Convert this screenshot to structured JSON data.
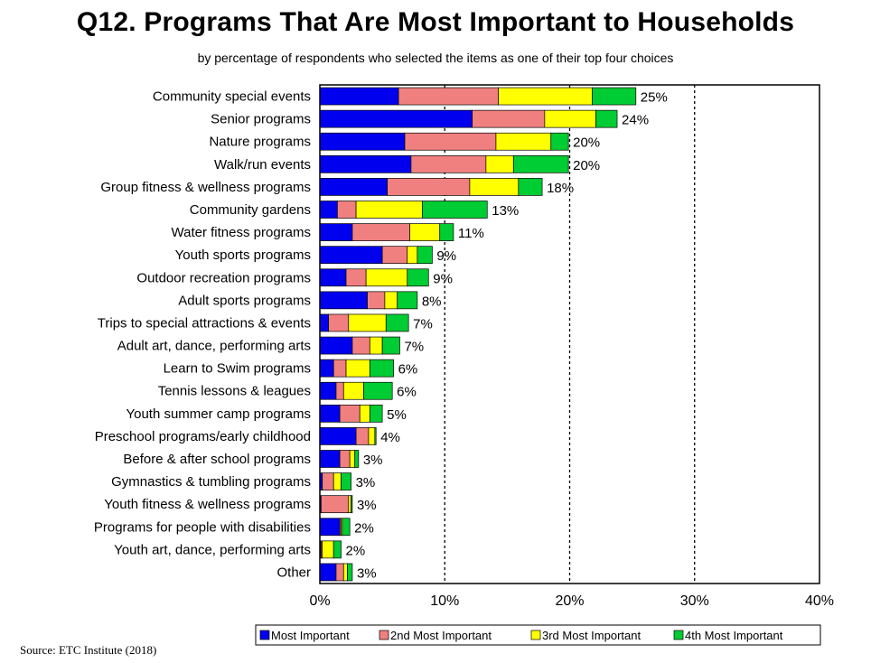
{
  "title": "Q12. Programs That Are Most Important to Households",
  "subtitle": "by percentage of respondents who selected the items as one of their top four choices",
  "source": "Source:  ETC Institute (2018)",
  "colors": {
    "most": "#0000ee",
    "second": "#f08080",
    "third": "#ffff00",
    "fourth": "#00cc33"
  },
  "chart_data": {
    "type": "bar",
    "orientation": "horizontal",
    "stacked": true,
    "x_ticks": [
      "0%",
      "10%",
      "20%",
      "30%",
      "40%"
    ],
    "xlim": [
      0,
      40
    ],
    "grid": "dotted vertical at 10%, 20%, 30%",
    "legend_position": "bottom",
    "series": [
      {
        "name": "Most Important",
        "color": "#0000ee"
      },
      {
        "name": "2nd Most Important",
        "color": "#f08080"
      },
      {
        "name": "3rd Most Important",
        "color": "#ffff00"
      },
      {
        "name": "4th Most Important",
        "color": "#00cc33"
      }
    ],
    "categories": [
      {
        "label": "Community special events",
        "values": [
          6.3,
          8.0,
          7.5,
          3.5
        ],
        "total": "25%"
      },
      {
        "label": "Senior programs",
        "values": [
          12.2,
          5.8,
          4.1,
          1.7
        ],
        "total": "24%"
      },
      {
        "label": "Nature programs",
        "values": [
          6.8,
          7.3,
          4.4,
          1.4
        ],
        "total": "20%"
      },
      {
        "label": "Walk/run events",
        "values": [
          7.3,
          6.0,
          2.2,
          4.4
        ],
        "total": "20%"
      },
      {
        "label": "Group fitness & wellness programs",
        "values": [
          5.4,
          6.6,
          3.9,
          1.9
        ],
        "total": "18%"
      },
      {
        "label": "Community gardens",
        "values": [
          1.4,
          1.5,
          5.3,
          5.2
        ],
        "total": "13%"
      },
      {
        "label": "Water fitness programs",
        "values": [
          2.6,
          4.6,
          2.4,
          1.1
        ],
        "total": "11%"
      },
      {
        "label": "Youth sports programs",
        "values": [
          5.0,
          2.0,
          0.8,
          1.2
        ],
        "total": "9%"
      },
      {
        "label": "Outdoor recreation programs",
        "values": [
          2.1,
          1.6,
          3.3,
          1.7
        ],
        "total": "9%"
      },
      {
        "label": "Adult sports programs",
        "values": [
          3.8,
          1.4,
          1.0,
          1.6
        ],
        "total": "8%"
      },
      {
        "label": "Trips to special attractions & events",
        "values": [
          0.7,
          1.6,
          3.0,
          1.8
        ],
        "total": "7%"
      },
      {
        "label": "Adult art, dance, performing arts",
        "values": [
          2.6,
          1.4,
          1.0,
          1.4
        ],
        "total": "7%"
      },
      {
        "label": "Learn to Swim programs",
        "values": [
          1.1,
          1.0,
          1.9,
          1.9
        ],
        "total": "6%"
      },
      {
        "label": "Tennis lessons & leagues",
        "values": [
          1.3,
          0.6,
          1.6,
          2.3
        ],
        "total": "6%"
      },
      {
        "label": "Youth summer camp programs",
        "values": [
          1.6,
          1.6,
          0.8,
          1.0
        ],
        "total": "5%"
      },
      {
        "label": "Preschool programs/early childhood",
        "values": [
          2.9,
          1.0,
          0.5,
          0.1
        ],
        "total": "4%"
      },
      {
        "label": "Before & after school programs",
        "values": [
          1.6,
          0.8,
          0.4,
          0.3
        ],
        "total": "3%"
      },
      {
        "label": "Gymnastics & tumbling programs",
        "values": [
          0.2,
          0.9,
          0.6,
          0.8
        ],
        "total": "3%"
      },
      {
        "label": "Youth fitness & wellness programs",
        "values": [
          0.1,
          2.2,
          0.2,
          0.1
        ],
        "total": "3%"
      },
      {
        "label": "Programs for people with disabilities",
        "values": [
          1.6,
          0.1,
          0.1,
          0.6
        ],
        "total": "2%"
      },
      {
        "label": "Youth art, dance, performing arts",
        "values": [
          0.1,
          0.1,
          0.9,
          0.6
        ],
        "total": "2%"
      },
      {
        "label": "Other",
        "values": [
          1.3,
          0.6,
          0.3,
          0.4
        ],
        "total": "3%"
      }
    ]
  }
}
